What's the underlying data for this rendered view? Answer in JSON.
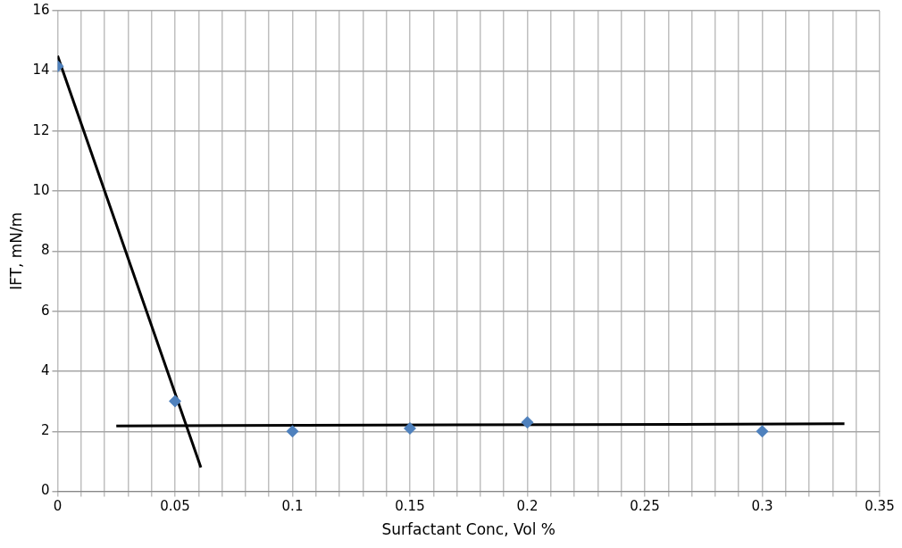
{
  "chart_data": {
    "type": "scatter",
    "xlabel": "Surfactant Conc, Vol %",
    "ylabel": "IFT, mN/m",
    "series": [
      {
        "marker": "diamond",
        "color": "#4f81bd",
        "x": [
          0,
          0.05,
          0.1,
          0.15,
          0.2,
          0.3
        ],
        "values": [
          14.15,
          3.0,
          2.0,
          2.1,
          2.3,
          2.0
        ]
      },
      {
        "type": "line",
        "marker": "none",
        "color": "#000000",
        "x": [
          0,
          0.061
        ],
        "values": [
          14.5,
          0.8
        ]
      },
      {
        "type": "line",
        "marker": "none",
        "color": "#000000",
        "x": [
          0.025,
          0.335
        ],
        "values": [
          2.18,
          2.25
        ]
      }
    ],
    "xlim": [
      0,
      0.35
    ],
    "xticks": [
      0,
      {
        "value": 0.01,
        "label": null
      },
      {
        "value": 0.02,
        "label": null
      },
      {
        "value": 0.03,
        "label": null
      },
      {
        "value": 0.04,
        "label": null
      },
      0.05,
      {
        "value": 0.06,
        "label": null
      },
      {
        "value": 0.07,
        "label": null
      },
      {
        "value": 0.08,
        "label": null
      },
      {
        "value": 0.09,
        "label": null
      },
      0.1,
      {
        "value": 0.11,
        "label": null
      },
      {
        "value": 0.12,
        "label": null
      },
      {
        "value": 0.13,
        "label": null
      },
      {
        "value": 0.14,
        "label": null
      },
      0.15,
      {
        "value": 0.16,
        "label": null
      },
      {
        "value": 0.17,
        "label": null
      },
      {
        "value": 0.18,
        "label": null
      },
      {
        "value": 0.19,
        "label": null
      },
      0.2,
      {
        "value": 0.21,
        "label": null
      },
      {
        "value": 0.22,
        "label": null
      },
      {
        "value": 0.23,
        "label": null
      },
      {
        "value": 0.24,
        "label": null
      },
      0.25,
      {
        "value": 0.26,
        "label": null
      },
      {
        "value": 0.27,
        "label": null
      },
      {
        "value": 0.28,
        "label": null
      },
      {
        "value": 0.29,
        "label": null
      },
      0.3,
      {
        "value": 0.31,
        "label": null
      },
      {
        "value": 0.32,
        "label": null
      },
      {
        "value": 0.33,
        "label": null
      },
      {
        "value": 0.34,
        "label": null
      },
      0.35
    ],
    "ylim": [
      0,
      16
    ],
    "yticks": [
      0,
      2,
      4,
      6,
      8,
      10,
      12,
      14,
      16
    ],
    "grid": true
  }
}
